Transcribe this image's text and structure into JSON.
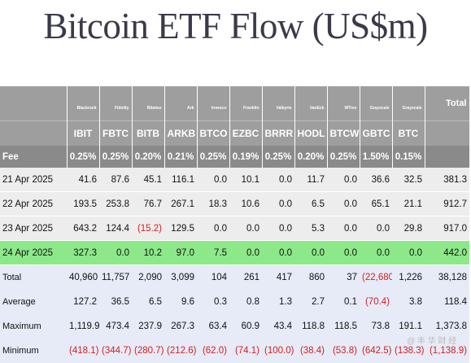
{
  "title": "Bitcoin ETF Flow (US$m)",
  "issuers": [
    "Blackrock",
    "Fidelity",
    "Bitwise",
    "Ark",
    "Invesco",
    "Franklin",
    "Valkyrie",
    "VanEck",
    "WTree",
    "Grayscale",
    "Grayscale"
  ],
  "total_label": "Total",
  "tickers": [
    "IBIT",
    "FBTC",
    "BITB",
    "ARKB",
    "BTCO",
    "EZBC",
    "BRRR",
    "HODL",
    "BTCW",
    "GBTC",
    "BTC"
  ],
  "fee": {
    "label": "Fee",
    "values": [
      "0.25%",
      "0.25%",
      "0.20%",
      "0.21%",
      "0.25%",
      "0.19%",
      "0.25%",
      "0.20%",
      "0.25%",
      "1.50%",
      "0.15%"
    ]
  },
  "days": [
    {
      "date": "21 Apr 2025",
      "values": [
        "41.6",
        "87.6",
        "45.1",
        "116.1",
        "0.0",
        "10.1",
        "0.0",
        "11.7",
        "0.0",
        "36.6",
        "32.5"
      ],
      "total": "381.3"
    },
    {
      "date": "22 Apr 2025",
      "values": [
        "193.5",
        "253.8",
        "76.7",
        "267.1",
        "18.3",
        "10.6",
        "0.0",
        "6.5",
        "0.0",
        "65.1",
        "21.1"
      ],
      "total": "912.7"
    },
    {
      "date": "23 Apr 2025",
      "values": [
        "643.2",
        "124.4",
        "(15.2)",
        "129.5",
        "0.0",
        "0.0",
        "0.0",
        "5.3",
        "0.0",
        "0.0",
        "29.8"
      ],
      "total": "917.0"
    },
    {
      "date": "24 Apr 2025",
      "values": [
        "327.3",
        "0.0",
        "10.2",
        "97.0",
        "7.5",
        "0.0",
        "0.0",
        "0.0",
        "0.0",
        "0.0",
        "0.0"
      ],
      "total": "442.0"
    }
  ],
  "stats": [
    {
      "label": "Total",
      "values": [
        "40,960",
        "11,757",
        "2,090",
        "3,099",
        "104",
        "261",
        "417",
        "860",
        "37",
        "(22,680)",
        "1,226"
      ],
      "total": "38,128"
    },
    {
      "label": "Average",
      "values": [
        "127.2",
        "36.5",
        "6.5",
        "9.6",
        "0.3",
        "0.8",
        "1.3",
        "2.7",
        "0.1",
        "(70.4)",
        "3.8"
      ],
      "total": "118.4"
    },
    {
      "label": "Maximum",
      "values": [
        "1,119.9",
        "473.4",
        "237.9",
        "267.3",
        "63.4",
        "60.9",
        "43.4",
        "118.8",
        "118.5",
        "73.8",
        "191.1"
      ],
      "total": "1,373.8"
    },
    {
      "label": "Minimum",
      "values": [
        "(418.1)",
        "(344.7)",
        "(280.7)",
        "(212.6)",
        "(62.0)",
        "(74.1)",
        "(100.0)",
        "(38.4)",
        "(53.8)",
        "(642.5)",
        "(138.3)"
      ],
      "total": "(1,138.9)"
    }
  ],
  "watermark": "@ 丰 华 财 经",
  "colors": {
    "header": "#9e9e9e",
    "fee_row": "#8a8a8a",
    "highlight": "#8de88a",
    "negative": "#d42020"
  }
}
